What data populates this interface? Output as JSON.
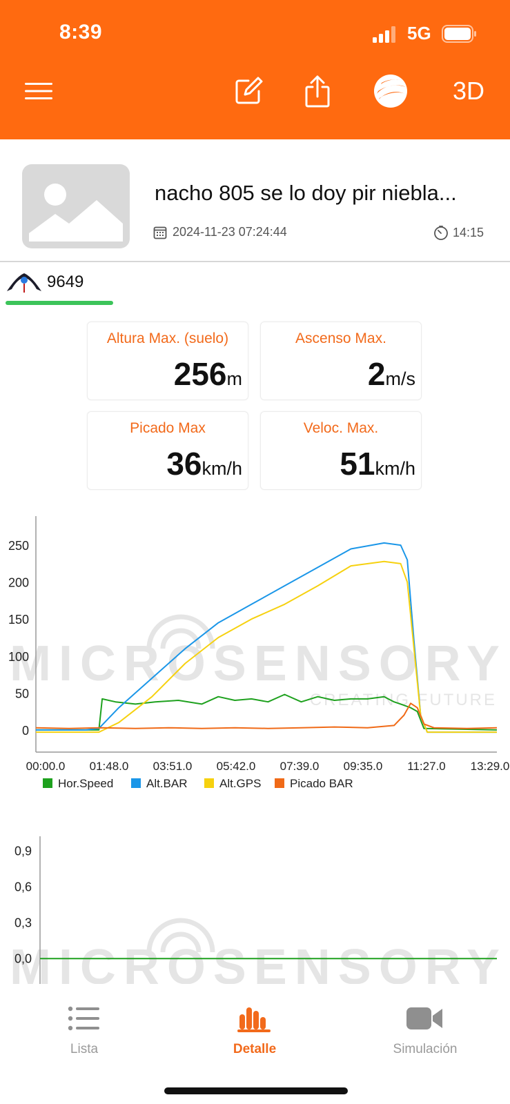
{
  "status_bar": {
    "time": "8:39",
    "network": "5G"
  },
  "toolbar": {
    "label_3d": "3D"
  },
  "flight": {
    "title": "nacho 805 se lo doy pir niebla...",
    "datetime": "2024-11-23 07:24:44",
    "duration": "14:15"
  },
  "device": {
    "id": "9649"
  },
  "stats": [
    {
      "label": "Altura Max. (suelo)",
      "value": "256",
      "unit": "m"
    },
    {
      "label": "Ascenso Max.",
      "value": "2",
      "unit": "m/s"
    },
    {
      "label": "Picado Max",
      "value": "36",
      "unit": "km/h"
    },
    {
      "label": "Veloc. Max.",
      "value": "51",
      "unit": "km/h"
    }
  ],
  "watermark": {
    "brand": "MICROSENSORY",
    "tagline": "CREATING FUTURE"
  },
  "chart_data": [
    {
      "type": "line",
      "ylim": [
        -30,
        280
      ],
      "yticks": [
        "0",
        "50",
        "100",
        "150",
        "200",
        "250"
      ],
      "xticks": [
        "00:00.0",
        "01:48.0",
        "03:51.0",
        "05:42.0",
        "07:39.0",
        "09:35.0",
        "11:27.0",
        "13:29.0"
      ],
      "grid": false,
      "legend_position": "bottom",
      "series": [
        {
          "name": "Hor.Speed",
          "color": "#1ea11e",
          "x": [
            0,
            1.9,
            2.0,
            2.4,
            3.0,
            3.6,
            4.3,
            5.0,
            5.5,
            6.0,
            6.5,
            7.0,
            7.5,
            8.0,
            8.5,
            9.0,
            9.5,
            10.0,
            10.5,
            10.8,
            11.0,
            11.3,
            11.5,
            11.7,
            13.9
          ],
          "values": [
            0,
            0,
            42,
            38,
            35,
            38,
            40,
            35,
            45,
            40,
            42,
            38,
            48,
            38,
            45,
            40,
            42,
            42,
            45,
            38,
            35,
            30,
            25,
            2,
            0
          ]
        },
        {
          "name": "Alt.BAR",
          "color": "#1a96e8",
          "x": [
            0,
            1.5,
            1.9,
            2.5,
            3.5,
            4.5,
            5.5,
            6.5,
            7.5,
            8.5,
            9.5,
            10.5,
            11.0,
            11.2,
            11.4,
            11.6,
            11.8,
            13.9
          ],
          "values": [
            0,
            0,
            2,
            30,
            70,
            110,
            145,
            170,
            195,
            220,
            245,
            253,
            250,
            230,
            120,
            20,
            -3,
            -3
          ]
        },
        {
          "name": "Alt.GPS",
          "color": "#f6d10f",
          "x": [
            0,
            1.5,
            1.9,
            2.5,
            3.5,
            4.5,
            5.5,
            6.5,
            7.5,
            8.5,
            9.5,
            10.5,
            11.0,
            11.2,
            11.4,
            11.6,
            11.8,
            13.9
          ],
          "values": [
            -3,
            -3,
            -3,
            10,
            45,
            90,
            125,
            150,
            170,
            195,
            222,
            228,
            225,
            200,
            110,
            20,
            -3,
            -3
          ]
        },
        {
          "name": "Picado BAR",
          "color": "#f06a17",
          "x": [
            0,
            1.0,
            2.0,
            3.0,
            4.0,
            5.0,
            6.0,
            7.0,
            8.0,
            9.0,
            10.0,
            10.8,
            11.1,
            11.3,
            11.5,
            11.7,
            12.0,
            13.0,
            13.9
          ],
          "values": [
            3,
            2,
            3,
            2,
            3,
            2,
            3,
            2,
            3,
            4,
            3,
            6,
            20,
            36,
            30,
            8,
            3,
            2,
            3
          ]
        }
      ]
    },
    {
      "type": "line",
      "ylim": [
        -0.05,
        1.0
      ],
      "yticks": [
        "0,0",
        "0,3",
        "0,6",
        "0,9"
      ],
      "grid": false,
      "series": [
        {
          "color": "#1ea11e",
          "x": [
            0,
            13.9
          ],
          "values": [
            0,
            0
          ]
        }
      ]
    }
  ],
  "tabs": [
    {
      "label": "Lista",
      "icon": "list-icon",
      "active": false
    },
    {
      "label": "Detalle",
      "icon": "bar-chart-icon",
      "active": true
    },
    {
      "label": "Simulación",
      "icon": "video-camera-icon",
      "active": false
    }
  ],
  "colors": {
    "brand": "#ff6a10",
    "accent": "#f26a1b",
    "underline": "#3cc45a"
  }
}
